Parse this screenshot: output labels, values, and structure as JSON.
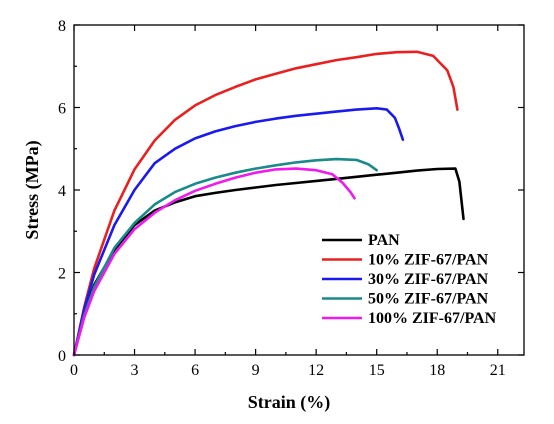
{
  "chart_data": {
    "type": "line",
    "xlabel": "Strain (%)",
    "ylabel": "Stress (MPa)",
    "xlim": [
      0,
      22.3
    ],
    "ylim": [
      0,
      8
    ],
    "xticks": [
      "0",
      "3",
      "6",
      "9",
      "12",
      "15",
      "18",
      "21"
    ],
    "yticks": [
      "0",
      "2",
      "4",
      "6",
      "8"
    ],
    "grid": false,
    "legend_position": "bottom-right",
    "series": [
      {
        "name": "PAN",
        "color": "#000000",
        "points": [
          [
            0,
            0
          ],
          [
            0.5,
            1.0
          ],
          [
            1,
            1.7
          ],
          [
            2,
            2.55
          ],
          [
            3,
            3.15
          ],
          [
            4,
            3.5
          ],
          [
            5,
            3.7
          ],
          [
            6,
            3.85
          ],
          [
            7,
            3.93
          ],
          [
            8,
            4.0
          ],
          [
            9,
            4.06
          ],
          [
            10,
            4.12
          ],
          [
            11,
            4.17
          ],
          [
            12,
            4.22
          ],
          [
            13,
            4.27
          ],
          [
            14,
            4.32
          ],
          [
            15,
            4.37
          ],
          [
            16,
            4.42
          ],
          [
            17,
            4.47
          ],
          [
            18,
            4.51
          ],
          [
            18.9,
            4.52
          ],
          [
            19.1,
            4.2
          ],
          [
            19.3,
            3.3
          ]
        ]
      },
      {
        "name": "10% ZIF-67/PAN",
        "color": "#e8201f",
        "points": [
          [
            0,
            0
          ],
          [
            0.5,
            1.15
          ],
          [
            1,
            2.1
          ],
          [
            2,
            3.5
          ],
          [
            3,
            4.5
          ],
          [
            4,
            5.2
          ],
          [
            5,
            5.7
          ],
          [
            6,
            6.05
          ],
          [
            7,
            6.3
          ],
          [
            8,
            6.5
          ],
          [
            9,
            6.68
          ],
          [
            10,
            6.82
          ],
          [
            11,
            6.95
          ],
          [
            12,
            7.05
          ],
          [
            13,
            7.15
          ],
          [
            14,
            7.22
          ],
          [
            15,
            7.3
          ],
          [
            16,
            7.34
          ],
          [
            17,
            7.35
          ],
          [
            17.8,
            7.25
          ],
          [
            18.5,
            6.9
          ],
          [
            18.8,
            6.5
          ],
          [
            19,
            5.95
          ]
        ]
      },
      {
        "name": "30% ZIF-67/PAN",
        "color": "#1a1aee",
        "points": [
          [
            0,
            0
          ],
          [
            0.5,
            1.1
          ],
          [
            1,
            1.95
          ],
          [
            2,
            3.15
          ],
          [
            3,
            4.0
          ],
          [
            4,
            4.65
          ],
          [
            5,
            5.0
          ],
          [
            6,
            5.25
          ],
          [
            7,
            5.42
          ],
          [
            8,
            5.55
          ],
          [
            9,
            5.65
          ],
          [
            10,
            5.73
          ],
          [
            11,
            5.8
          ],
          [
            12,
            5.85
          ],
          [
            13,
            5.9
          ],
          [
            14,
            5.95
          ],
          [
            15,
            5.98
          ],
          [
            15.5,
            5.95
          ],
          [
            15.9,
            5.75
          ],
          [
            16.1,
            5.5
          ],
          [
            16.3,
            5.22
          ]
        ]
      },
      {
        "name": "50% ZIF-67/PAN",
        "color": "#1a8a8a",
        "points": [
          [
            0,
            0
          ],
          [
            0.5,
            0.95
          ],
          [
            1,
            1.65
          ],
          [
            2,
            2.6
          ],
          [
            3,
            3.2
          ],
          [
            4,
            3.65
          ],
          [
            5,
            3.95
          ],
          [
            6,
            4.15
          ],
          [
            7,
            4.3
          ],
          [
            8,
            4.42
          ],
          [
            9,
            4.52
          ],
          [
            10,
            4.6
          ],
          [
            11,
            4.67
          ],
          [
            12,
            4.72
          ],
          [
            13,
            4.75
          ],
          [
            14,
            4.73
          ],
          [
            14.6,
            4.62
          ],
          [
            15,
            4.48
          ]
        ]
      },
      {
        "name": "100% ZIF-67/PAN",
        "color": "#ee1aee",
        "points": [
          [
            0,
            0
          ],
          [
            0.5,
            0.9
          ],
          [
            1,
            1.55
          ],
          [
            2,
            2.45
          ],
          [
            3,
            3.05
          ],
          [
            4,
            3.45
          ],
          [
            5,
            3.75
          ],
          [
            6,
            3.98
          ],
          [
            7,
            4.15
          ],
          [
            8,
            4.3
          ],
          [
            9,
            4.42
          ],
          [
            10,
            4.5
          ],
          [
            11,
            4.52
          ],
          [
            12,
            4.48
          ],
          [
            12.8,
            4.38
          ],
          [
            13.3,
            4.18
          ],
          [
            13.7,
            3.95
          ],
          [
            13.9,
            3.8
          ]
        ]
      }
    ]
  }
}
